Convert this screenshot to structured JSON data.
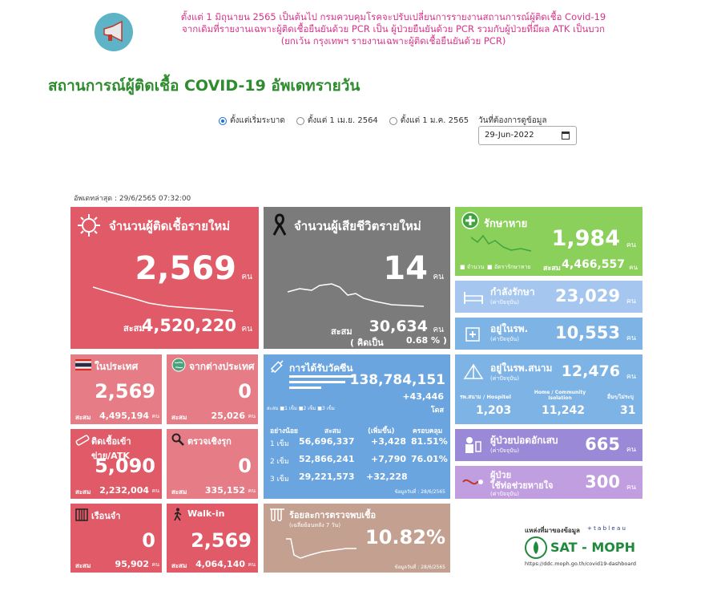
{
  "banner": {
    "line1": "ตั้งแต่ 1 มิถุนายน 2565 เป็นต้นไป กรมควบคุมโรคจะปรับเปลี่ยนการรายงานสถานการณ์ผู้ติดเชื้อ Covid-19",
    "line2": "จากเดิมที่รายงานเฉพาะผู้ติดเชื้อยืนยันด้วย PCR เป็น ผู้ป่วยยืนยันด้วย PCR รวมกับผู้ป่วยที่มีผล ATK เป็นบวก",
    "line3": "(ยกเว้น กรุงเทพฯ รายงานเฉพาะผู้ติดเชื้อยืนยันด้วย PCR)"
  },
  "title": "สถานการณ์ผู้ติดเชื้อ COVID-19 อัพเดทรายวัน",
  "filters": {
    "options": [
      "ตั้งแต่เริ่มระบาด",
      "ตั้งแต่ 1 เม.ย. 2564",
      "ตั้งแต่ 1 ม.ค. 2565"
    ],
    "selected_index": 0,
    "date_label": "วันที่ต้องการดูข้อมูล",
    "date_value": "29-Jun-2022"
  },
  "updated": "อัพเดทล่าสุด : 29/6/2565 07:32:00",
  "unit": "คน",
  "cum_prefix": "สะสม",
  "new_cases": {
    "label": "จำนวนผู้ติดเชื้อรายใหม่",
    "value": "2,569",
    "cumulative": "4,520,220"
  },
  "new_deaths": {
    "label": "จำนวนผู้เสียชีวิตรายใหม่",
    "value": "14",
    "cumulative": "30,634",
    "ratio_label": "( คิดเป็น",
    "ratio": "0.68 % )"
  },
  "recovered": {
    "label": "รักษาหาย",
    "value": "1,984",
    "cumulative": "4,466,557",
    "legend1": "จำนวน",
    "legend2": "อัตรารักษาหาย"
  },
  "treating": {
    "label": "กำลังรักษา",
    "sub": "(ค่าปัจจุบัน)",
    "value": "23,029"
  },
  "hospital": {
    "label": "อยู่ในรพ.",
    "sub": "(ค่าปัจจุบัน)",
    "value": "10,553"
  },
  "field_hospital": {
    "label": "อยู่ในรพ.สนาม",
    "sub": "(ค่าปัจจุบัน)",
    "value": "12,476",
    "cols": [
      {
        "head": "รพ.สนาม / Hospitel",
        "value": "1,203"
      },
      {
        "head": "Home / Community Isolation",
        "value": "11,242"
      },
      {
        "head": "อื่นๆ/ไม่ระบุ",
        "value": "31"
      }
    ]
  },
  "pneumonia": {
    "label": "ผู้ป่วยปอดอักเสบ",
    "sub": "(ค่าปัจจุบัน)",
    "value": "665"
  },
  "ventilator": {
    "label1": "ผู้ป่วย",
    "label2": "ใช้ท่อช่วยหายใจ",
    "sub": "(ค่าปัจจุบัน)",
    "value": "300"
  },
  "domestic": {
    "label": "ในประเทศ",
    "value": "2,569",
    "cumulative": "4,495,194"
  },
  "imported": {
    "label": "จากต่างประเทศ",
    "value": "0",
    "cumulative": "25,026"
  },
  "atk": {
    "label": "ติดเชื้อเข้าข่าย/ATK",
    "value": "5,090",
    "cumulative": "2,232,004"
  },
  "active_search": {
    "label": "ตรวจเชิงรุก",
    "value": "0",
    "cumulative": "335,152"
  },
  "prison": {
    "label": "เรือนจำ",
    "value": "0",
    "cumulative": "95,902"
  },
  "walkin": {
    "label": "Walk-in",
    "value": "2,569",
    "cumulative": "4,064,140"
  },
  "vaccine": {
    "label": "การได้รับวัคซีน",
    "total": "138,784,151",
    "increase": "+43,446",
    "unit": "โดส",
    "legend": [
      "1 เข็ม",
      "2 เข็ม",
      "3 เข็ม"
    ],
    "headers": [
      "อย่างน้อย",
      "สะสม",
      "(เพิ่มขึ้น)",
      "ครอบคลุม"
    ],
    "rows": [
      [
        "1 เข็ม",
        "56,696,337",
        "+3,428",
        "81.51%"
      ],
      [
        "2 เข็ม",
        "52,866,241",
        "+7,790",
        "76.01%"
      ],
      [
        "3 เข็ม",
        "29,221,573",
        "+32,228",
        ""
      ]
    ],
    "note": "ข้อมูลวันที่ : 28/6/2565"
  },
  "positivity": {
    "label": "ร้อยละการตรวจพบเชื้อ",
    "sub": "(เฉลี่ยย้อนหลัง 7 วัน)",
    "value": "10.82%",
    "note": "ข้อมูลวันที่ : 28/6/2565"
  },
  "source": {
    "label": "แหล่งที่มาของข้อมูล",
    "tableau": "+ t a b l e a u",
    "brand": "SAT - MOPH",
    "url": "https://ddc.moph.go.th/covid19-dashboard"
  },
  "colors": {
    "cases": "#e05a67",
    "deaths": "#7b7b7b",
    "recovered": "#8bd05a",
    "vaccine": "#6aa5e0",
    "title_green": "#2e8b2e",
    "banner_pink": "#d9338a"
  }
}
